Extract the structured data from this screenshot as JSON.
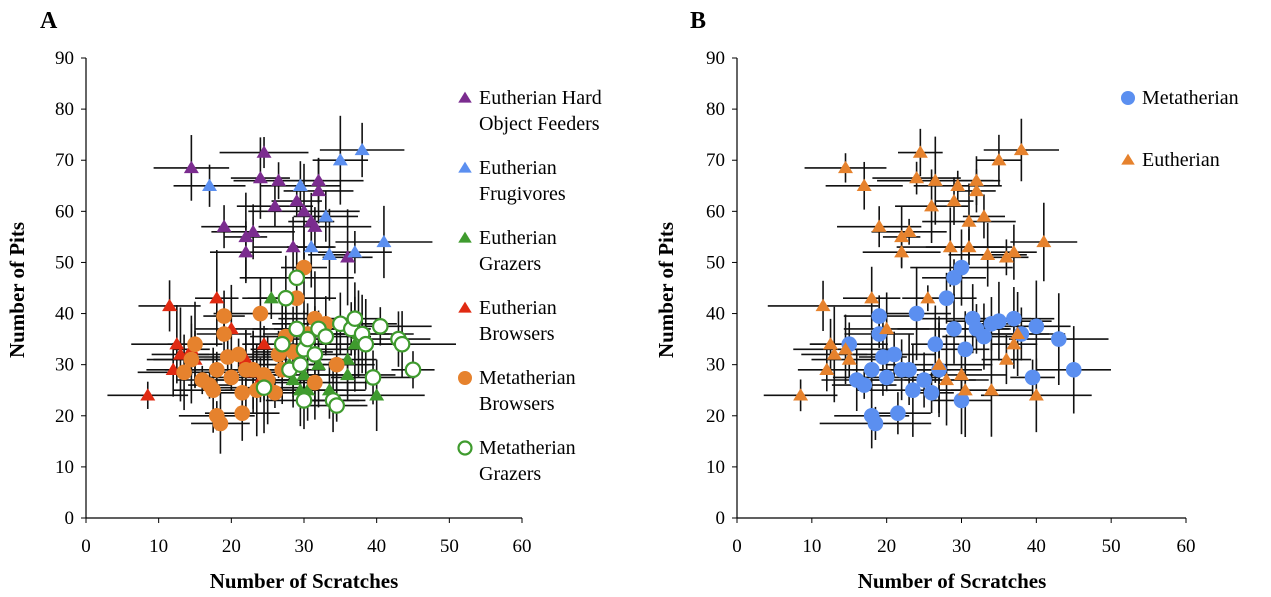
{
  "chart_data": [
    {
      "type": "scatter",
      "panel_label": "A",
      "xlabel": "Number of Scratches",
      "ylabel": "Number of Pits",
      "xlim": [
        0,
        60
      ],
      "ylim": [
        0,
        90
      ],
      "xticks": [
        "0",
        "10",
        "20",
        "30",
        "40",
        "50",
        "60"
      ],
      "yticks": [
        "0",
        "10",
        "20",
        "30",
        "40",
        "50",
        "60",
        "70",
        "80",
        "90"
      ],
      "grid": false,
      "error_bars": true,
      "legend_position": "right",
      "series": [
        {
          "name": "Eutherian Hard Object Feeders",
          "name_lines": [
            "Eutherian Hard",
            "Object Feeders"
          ],
          "marker": "triangle",
          "color": "#7b2c8f",
          "points": [
            [
              14.5,
              68.5
            ],
            [
              19,
              57
            ],
            [
              22,
              52
            ],
            [
              22,
              55
            ],
            [
              23,
              56
            ],
            [
              24,
              66.5
            ],
            [
              24.5,
              71.5
            ],
            [
              26,
              61
            ],
            [
              26.5,
              66
            ],
            [
              28.5,
              53
            ],
            [
              29,
              62
            ],
            [
              30,
              60
            ],
            [
              31,
              58
            ],
            [
              31.5,
              57
            ],
            [
              32,
              64
            ],
            [
              32,
              66
            ],
            [
              36,
              51
            ]
          ]
        },
        {
          "name": "Eutherian Frugivores",
          "name_lines": [
            "Eutherian",
            "Frugivores"
          ],
          "marker": "triangle",
          "color": "#5b8ff0",
          "points": [
            [
              17,
              65
            ],
            [
              29.5,
              65
            ],
            [
              31,
              53
            ],
            [
              33,
              59
            ],
            [
              33.5,
              51.5
            ],
            [
              35,
              70
            ],
            [
              37,
              52
            ],
            [
              38,
              72
            ],
            [
              41,
              54
            ]
          ]
        },
        {
          "name": "Eutherian Grazers",
          "name_lines": [
            "Eutherian",
            "Grazers"
          ],
          "marker": "triangle",
          "color": "#3f9b2e",
          "points": [
            [
              25.5,
              43
            ],
            [
              28,
              30
            ],
            [
              28.5,
              27
            ],
            [
              29.5,
              25
            ],
            [
              30,
              28
            ],
            [
              30.5,
              25
            ],
            [
              32,
              30
            ],
            [
              33.5,
              25
            ],
            [
              34.5,
              23
            ],
            [
              36,
              28
            ],
            [
              36,
              31
            ],
            [
              37,
              34
            ],
            [
              37.5,
              36
            ],
            [
              40,
              24
            ]
          ]
        },
        {
          "name": "Eutherian Browsers",
          "name_lines": [
            "Eutherian",
            "Browsers"
          ],
          "marker": "triangle",
          "color": "#e02a12",
          "points": [
            [
              8.5,
              24
            ],
            [
              11.5,
              41.5
            ],
            [
              12,
              29
            ],
            [
              12.5,
              34
            ],
            [
              13,
              32
            ],
            [
              14.5,
              33
            ],
            [
              15,
              31
            ],
            [
              18,
              43
            ],
            [
              20,
              37
            ],
            [
              22,
              31
            ],
            [
              23,
              28.5
            ],
            [
              24,
              27
            ],
            [
              24.5,
              34
            ]
          ]
        },
        {
          "name": "Metatherian Browsers",
          "name_lines": [
            "Metatherian",
            "Browsers"
          ],
          "marker": "circle",
          "color": "#e6822d",
          "points": [
            [
              13.5,
              28.5
            ],
            [
              14.5,
              31
            ],
            [
              15,
              34
            ],
            [
              16,
              27
            ],
            [
              17,
              26
            ],
            [
              17.5,
              25
            ],
            [
              18,
              29
            ],
            [
              18,
              20
            ],
            [
              18.5,
              18.5
            ],
            [
              19,
              39.5
            ],
            [
              19,
              36
            ],
            [
              19.5,
              31.5
            ],
            [
              20,
              27.5
            ],
            [
              21,
              32
            ],
            [
              21.5,
              24.5
            ],
            [
              21.5,
              20.5
            ],
            [
              22,
              29
            ],
            [
              23,
              29
            ],
            [
              23.5,
              25
            ],
            [
              24,
              40
            ],
            [
              24.5,
              28
            ],
            [
              25,
              27
            ],
            [
              26,
              24.5
            ],
            [
              26.5,
              32
            ],
            [
              27,
              29
            ],
            [
              27.5,
              35.5
            ],
            [
              28.5,
              32.5
            ],
            [
              29,
              43
            ],
            [
              30,
              49
            ],
            [
              30.5,
              36
            ],
            [
              31.5,
              26.5
            ],
            [
              31.5,
              39
            ],
            [
              33,
              38
            ],
            [
              34.5,
              30
            ]
          ]
        },
        {
          "name": "Metatherian Grazers",
          "name_lines": [
            "Metatherian",
            "Grazers"
          ],
          "marker": "circle-open",
          "color": "#3f9b2e",
          "points": [
            [
              24.5,
              25.5
            ],
            [
              27,
              34
            ],
            [
              27.5,
              43
            ],
            [
              28,
              29
            ],
            [
              29,
              47
            ],
            [
              29,
              37
            ],
            [
              29.5,
              30
            ],
            [
              30,
              23
            ],
            [
              30,
              33
            ],
            [
              30.5,
              35
            ],
            [
              31.5,
              32
            ],
            [
              32,
              37
            ],
            [
              33,
              35.5
            ],
            [
              34,
              23
            ],
            [
              34.5,
              22
            ],
            [
              35,
              38
            ],
            [
              36.5,
              37
            ],
            [
              37,
              39
            ],
            [
              38,
              36
            ],
            [
              38.5,
              34
            ],
            [
              39.5,
              27.5
            ],
            [
              40.5,
              37.5
            ],
            [
              43,
              35
            ],
            [
              43.5,
              34
            ],
            [
              45,
              29
            ]
          ]
        }
      ]
    },
    {
      "type": "scatter",
      "panel_label": "B",
      "xlabel": "Number of Scratches",
      "ylabel": "Number of Pits",
      "xlim": [
        0,
        60
      ],
      "ylim": [
        0,
        90
      ],
      "xticks": [
        "0",
        "10",
        "20",
        "30",
        "40",
        "50",
        "60"
      ],
      "yticks": [
        "0",
        "10",
        "20",
        "30",
        "40",
        "50",
        "60",
        "70",
        "80",
        "90"
      ],
      "grid": false,
      "error_bars": true,
      "legend_position": "top-right",
      "series": [
        {
          "name": "Metatherian",
          "name_lines": [
            "Metatherian"
          ],
          "marker": "circle",
          "color": "#5b8ff0",
          "points": [
            [
              15,
              34
            ],
            [
              16,
              27
            ],
            [
              17,
              26
            ],
            [
              18,
              29
            ],
            [
              18,
              20
            ],
            [
              18.5,
              18.5
            ],
            [
              19,
              39.5
            ],
            [
              19,
              36
            ],
            [
              19.5,
              31.5
            ],
            [
              20,
              27.5
            ],
            [
              21,
              32
            ],
            [
              21.5,
              20.5
            ],
            [
              22,
              29
            ],
            [
              23,
              29
            ],
            [
              23.5,
              25
            ],
            [
              24,
              40
            ],
            [
              25,
              27
            ],
            [
              26,
              24.5
            ],
            [
              26.5,
              34
            ],
            [
              27,
              29
            ],
            [
              28,
              43
            ],
            [
              29,
              47
            ],
            [
              29,
              37
            ],
            [
              30,
              49
            ],
            [
              30,
              23
            ],
            [
              30.5,
              33
            ],
            [
              31.5,
              39
            ],
            [
              32,
              37
            ],
            [
              33,
              35.5
            ],
            [
              34,
              38
            ],
            [
              35,
              38.5
            ],
            [
              37,
              39
            ],
            [
              38,
              36
            ],
            [
              39.5,
              27.5
            ],
            [
              40,
              37.5
            ],
            [
              43,
              35
            ],
            [
              45,
              29
            ]
          ]
        },
        {
          "name": "Eutherian",
          "name_lines": [
            "Eutherian"
          ],
          "marker": "triangle",
          "color": "#e6822d",
          "points": [
            [
              8.5,
              24
            ],
            [
              11.5,
              41.5
            ],
            [
              12,
              29
            ],
            [
              12.5,
              34
            ],
            [
              13,
              32
            ],
            [
              14.5,
              33
            ],
            [
              14.5,
              68.5
            ],
            [
              15,
              31
            ],
            [
              17,
              65
            ],
            [
              18,
              43
            ],
            [
              19,
              57
            ],
            [
              20,
              37
            ],
            [
              22,
              52
            ],
            [
              22,
              55
            ],
            [
              23,
              56
            ],
            [
              24,
              66.5
            ],
            [
              24.5,
              71.5
            ],
            [
              26,
              61
            ],
            [
              26.5,
              66
            ],
            [
              25.5,
              43
            ],
            [
              27,
              30
            ],
            [
              28.5,
              53
            ],
            [
              28,
              27
            ],
            [
              29,
              62
            ],
            [
              29.5,
              65
            ],
            [
              30,
              28
            ],
            [
              30.5,
              25
            ],
            [
              31,
              53
            ],
            [
              31,
              58
            ],
            [
              32,
              64
            ],
            [
              32,
              66
            ],
            [
              33,
              59
            ],
            [
              33.5,
              51.5
            ],
            [
              34,
              25
            ],
            [
              35,
              70
            ],
            [
              36,
              51
            ],
            [
              36,
              31
            ],
            [
              37,
              34
            ],
            [
              37,
              52
            ],
            [
              37.5,
              36
            ],
            [
              38,
              72
            ],
            [
              40,
              24
            ],
            [
              41,
              54
            ]
          ]
        }
      ]
    }
  ]
}
